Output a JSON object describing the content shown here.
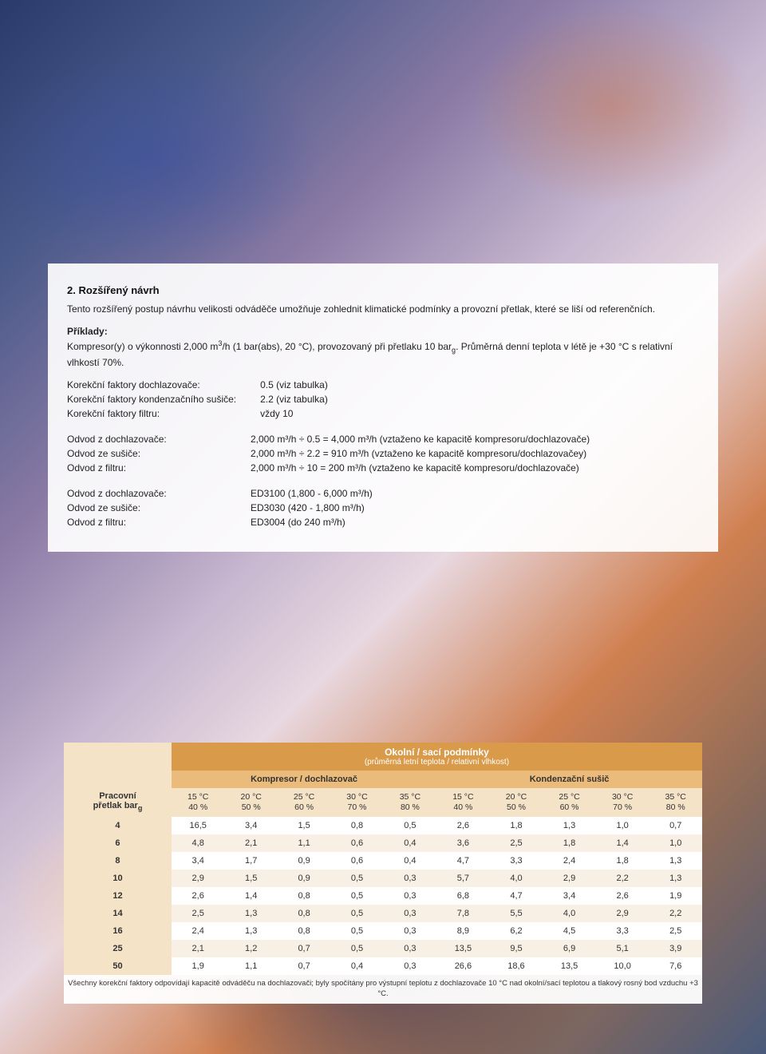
{
  "section_title": "2. Rozšířený návrh",
  "intro": "Tento rozšířený postup návrhu velikosti odváděče umožňuje zohlednit klimatické podmínky a provozní přetlak, které se liší od referenčních.",
  "examples_label": "Příklady:",
  "examples_text_a": "Kompresor(y) o výkonnosti 2,000 m",
  "examples_text_b": "/h (1 bar(abs), 20 °C), provozovaný při přetlaku 10 bar",
  "examples_text_c": ". Průměrná denní teplota v létě je +30 °C s relativní vlhkostí 70%.",
  "factors": [
    {
      "k": "Korekční faktory dochlazovače:",
      "v": "0.5 (viz tabulka)"
    },
    {
      "k": "Korekční faktory kondenzačního sušiče:",
      "v": "2.2 (viz tabulka)"
    },
    {
      "k": "Korekční faktory filtru:",
      "v": "vždy 10"
    }
  ],
  "calc": [
    {
      "k": "Odvod z dochlazovače:",
      "v": "2,000 m³/h ÷ 0.5 = 4,000 m³/h  (vztaženo ke kapacitě kompresoru/dochlazovače)"
    },
    {
      "k": "Odvod ze sušiče:",
      "v": "2,000 m³/h ÷ 2.2 = 910 m³/h (vztaženo ke kapacitě kompresoru/dochlazovačey)"
    },
    {
      "k": "Odvod z filtru:",
      "v": "2,000 m³/h ÷ 10 = 200 m³/h (vztaženo ke kapacitě kompresoru/dochlazovače)"
    }
  ],
  "models": [
    {
      "k": "Odvod z dochlazovače:",
      "v": "ED3100 (1,800 - 6,000 m³/h)"
    },
    {
      "k": "Odvod ze sušiče:",
      "v": "ED3030 (420 - 1,800 m³/h)"
    },
    {
      "k": "Odvod z filtru:",
      "v": "ED3004 (do 240 m³/h)"
    }
  ],
  "table": {
    "title": "Okolní / sací podmínky",
    "subtitle": "(průměrná letní teplota / relativní vlhkost)",
    "group_a": "Kompresor / dochlazovač",
    "group_b": "Kondenzační sušič",
    "row_header_top": "Pracovní",
    "row_header_bottom": "přetlak bar",
    "row_header_sub": "g",
    "col_headers": [
      {
        "t": "15 °C",
        "h": "40 %"
      },
      {
        "t": "20 °C",
        "h": "50 %"
      },
      {
        "t": "25 °C",
        "h": "60 %"
      },
      {
        "t": "30 °C",
        "h": "70 %"
      },
      {
        "t": "35 °C",
        "h": "80 %"
      },
      {
        "t": "15 °C",
        "h": "40 %"
      },
      {
        "t": "20 °C",
        "h": "50 %"
      },
      {
        "t": "25 °C",
        "h": "60 %"
      },
      {
        "t": "30 °C",
        "h": "70 %"
      },
      {
        "t": "35 °C",
        "h": "80 %"
      }
    ],
    "rows": [
      {
        "p": "4",
        "v": [
          "16,5",
          "3,4",
          "1,5",
          "0,8",
          "0,5",
          "2,6",
          "1,8",
          "1,3",
          "1,0",
          "0,7"
        ]
      },
      {
        "p": "6",
        "v": [
          "4,8",
          "2,1",
          "1,1",
          "0,6",
          "0,4",
          "3,6",
          "2,5",
          "1,8",
          "1,4",
          "1,0"
        ]
      },
      {
        "p": "8",
        "v": [
          "3,4",
          "1,7",
          "0,9",
          "0,6",
          "0,4",
          "4,7",
          "3,3",
          "2,4",
          "1,8",
          "1,3"
        ]
      },
      {
        "p": "10",
        "v": [
          "2,9",
          "1,5",
          "0,9",
          "0,5",
          "0,3",
          "5,7",
          "4,0",
          "2,9",
          "2,2",
          "1,3"
        ]
      },
      {
        "p": "12",
        "v": [
          "2,6",
          "1,4",
          "0,8",
          "0,5",
          "0,3",
          "6,8",
          "4,7",
          "3,4",
          "2,6",
          "1,9"
        ]
      },
      {
        "p": "14",
        "v": [
          "2,5",
          "1,3",
          "0,8",
          "0,5",
          "0,3",
          "7,8",
          "5,5",
          "4,0",
          "2,9",
          "2,2"
        ]
      },
      {
        "p": "16",
        "v": [
          "2,4",
          "1,3",
          "0,8",
          "0,5",
          "0,3",
          "8,9",
          "6,2",
          "4,5",
          "3,3",
          "2,5"
        ]
      },
      {
        "p": "25",
        "v": [
          "2,1",
          "1,2",
          "0,7",
          "0,5",
          "0,3",
          "13,5",
          "9,5",
          "6,9",
          "5,1",
          "3,9"
        ]
      },
      {
        "p": "50",
        "v": [
          "1,9",
          "1,1",
          "0,7",
          "0,4",
          "0,3",
          "26,6",
          "18,6",
          "13,5",
          "10,0",
          "7,6"
        ]
      }
    ],
    "footnote": "Všechny korekční faktory odpovídají kapacitě odváděču na dochlazovači; byly spočítány pro výstupní teplotu z dochlazovače 10 °C nad okolní/sací teplotou a tlakový rosný bod vzduchu +3 °C.",
    "colors": {
      "header1_bg": "#d99a4a",
      "header2_bg": "#eabb7a",
      "colhdr_bg": "#f5e3c8",
      "row_alt_bg": "#f8f0e4"
    }
  }
}
